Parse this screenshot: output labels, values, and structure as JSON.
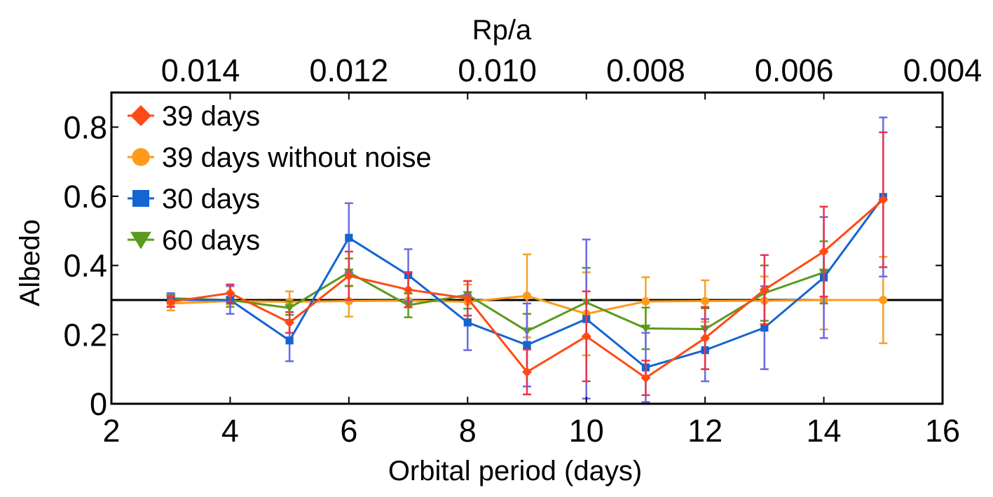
{
  "chart_data": {
    "type": "line",
    "xlabel": "Orbital period (days)",
    "ylabel": "Albedo",
    "top_xlabel": "Rp/a",
    "xlim": [
      2,
      16
    ],
    "ylim": [
      0,
      0.9
    ],
    "x_ticks": [
      2,
      4,
      6,
      8,
      10,
      12,
      14,
      16
    ],
    "x_tick_labels": [
      "2",
      "4",
      "6",
      "8",
      "10",
      "12",
      "14",
      "16"
    ],
    "y_ticks": [
      0,
      0.2,
      0.4,
      0.6,
      0.8
    ],
    "y_tick_labels": [
      "0",
      "0.2",
      "0.4",
      "0.6",
      "0.8"
    ],
    "top_ticks_x": [
      3.5,
      6.0,
      8.5,
      11.0,
      13.5,
      16.0
    ],
    "top_tick_labels": [
      "0.014",
      "0.012",
      "0.010",
      "0.008",
      "0.006",
      "0.004"
    ],
    "reference_line": {
      "y": 0.3,
      "color": "#000000"
    },
    "legend_position": "top-left",
    "x": [
      3,
      4,
      5,
      6,
      7,
      8,
      9,
      10,
      11,
      12,
      13,
      14,
      15
    ],
    "series": [
      {
        "name": "39 days",
        "color": "#ff4a17",
        "error_color": "#e8344a",
        "marker": "diamond",
        "values": [
          0.295,
          0.32,
          0.235,
          0.37,
          0.33,
          0.305,
          0.092,
          0.195,
          0.075,
          0.19,
          0.33,
          0.44,
          0.59
        ],
        "errors": [
          0.015,
          0.025,
          0.03,
          0.07,
          0.05,
          0.05,
          0.065,
          0.13,
          0.05,
          0.09,
          0.1,
          0.13,
          0.195
        ]
      },
      {
        "name": "39 days without noise",
        "color": "#ff9a1a",
        "error_color": "#f5a02a",
        "marker": "circle",
        "values": [
          0.29,
          0.297,
          0.295,
          0.297,
          0.298,
          0.295,
          0.312,
          0.26,
          0.296,
          0.297,
          0.298,
          0.3,
          0.3
        ],
        "errors": [
          0.02,
          0.01,
          0.03,
          0.045,
          0.02,
          0.05,
          0.12,
          0.12,
          0.07,
          0.06,
          0.07,
          0.085,
          0.125
        ]
      },
      {
        "name": "30 days",
        "color": "#1464d2",
        "error_color": "#6a6ae8",
        "marker": "square",
        "values": [
          0.3,
          0.3,
          0.183,
          0.48,
          0.372,
          0.235,
          0.17,
          0.245,
          0.105,
          0.155,
          0.22,
          0.365,
          0.598
        ],
        "errors": [
          0.02,
          0.04,
          0.06,
          0.1,
          0.075,
          0.08,
          0.12,
          0.23,
          0.1,
          0.09,
          0.12,
          0.175,
          0.23
        ]
      },
      {
        "name": "60 days",
        "color": "#5a9a1e",
        "error_color": "#5a9a1e",
        "marker": "triangle-down",
        "values": [
          0.305,
          0.3,
          0.277,
          0.38,
          0.285,
          0.315,
          0.21,
          0.293,
          0.218,
          0.216,
          0.32,
          0.38,
          null
        ],
        "errors": [
          0.01,
          0.02,
          0.02,
          0.04,
          0.035,
          0.04,
          0.05,
          0.1,
          0.06,
          0.06,
          0.08,
          0.09,
          null
        ]
      }
    ]
  }
}
